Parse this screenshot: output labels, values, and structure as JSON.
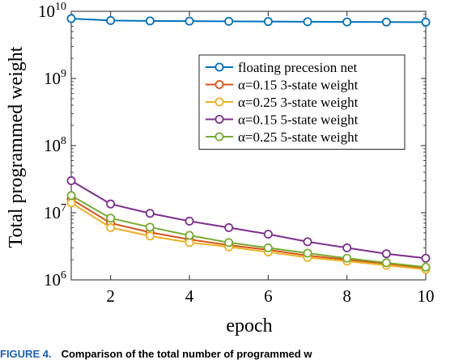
{
  "chart_data": {
    "type": "line",
    "xlabel": "epoch",
    "ylabel": "Total programmed weight",
    "x": [
      1,
      2,
      3,
      4,
      5,
      6,
      7,
      8,
      9,
      10
    ],
    "xlim": [
      1,
      10
    ],
    "xticks": [
      2,
      4,
      6,
      8,
      10
    ],
    "yscale": "log",
    "ylim": [
      1000000,
      10000000000
    ],
    "yticks": [
      {
        "value": 1000000,
        "base": "10",
        "exp": "6"
      },
      {
        "value": 10000000,
        "base": "10",
        "exp": "7"
      },
      {
        "value": 100000000,
        "base": "10",
        "exp": "8"
      },
      {
        "value": 1000000000,
        "base": "10",
        "exp": "9"
      },
      {
        "value": 10000000000,
        "base": "10",
        "exp": "10"
      }
    ],
    "grid": false,
    "legend_position": "upper-right",
    "series": [
      {
        "name": "floating precesion net",
        "color": "#0072bd",
        "values": [
          7800000000,
          7300000000,
          7200000000,
          7150000000,
          7100000000,
          7050000000,
          7000000000,
          6950000000,
          6920000000,
          6900000000
        ]
      },
      {
        "name": "α=0.15 3-state weight",
        "color": "#d95319",
        "values": [
          16000000,
          7000000,
          5100000,
          4000000,
          3300000,
          2800000,
          2300000,
          2000000,
          1750000,
          1500000
        ]
      },
      {
        "name": "α=0.25 3-state weight",
        "color": "#edb120",
        "values": [
          14000000,
          6000000,
          4500000,
          3600000,
          3100000,
          2600000,
          2150000,
          1900000,
          1650000,
          1430000
        ]
      },
      {
        "name": "α=0.15 5-state weight",
        "color": "#7e2f8e",
        "values": [
          30000000,
          13500000,
          9800000,
          7500000,
          6000000,
          4800000,
          3700000,
          3000000,
          2450000,
          2100000
        ]
      },
      {
        "name": "α=0.25 5-state weight",
        "color": "#77ac30",
        "values": [
          18000000,
          8300000,
          6100000,
          4600000,
          3600000,
          3000000,
          2500000,
          2100000,
          1800000,
          1550000
        ]
      }
    ]
  },
  "caption": {
    "figure_number": "FIGURE 4.",
    "text": "Comparison of the total number of programmed w"
  }
}
